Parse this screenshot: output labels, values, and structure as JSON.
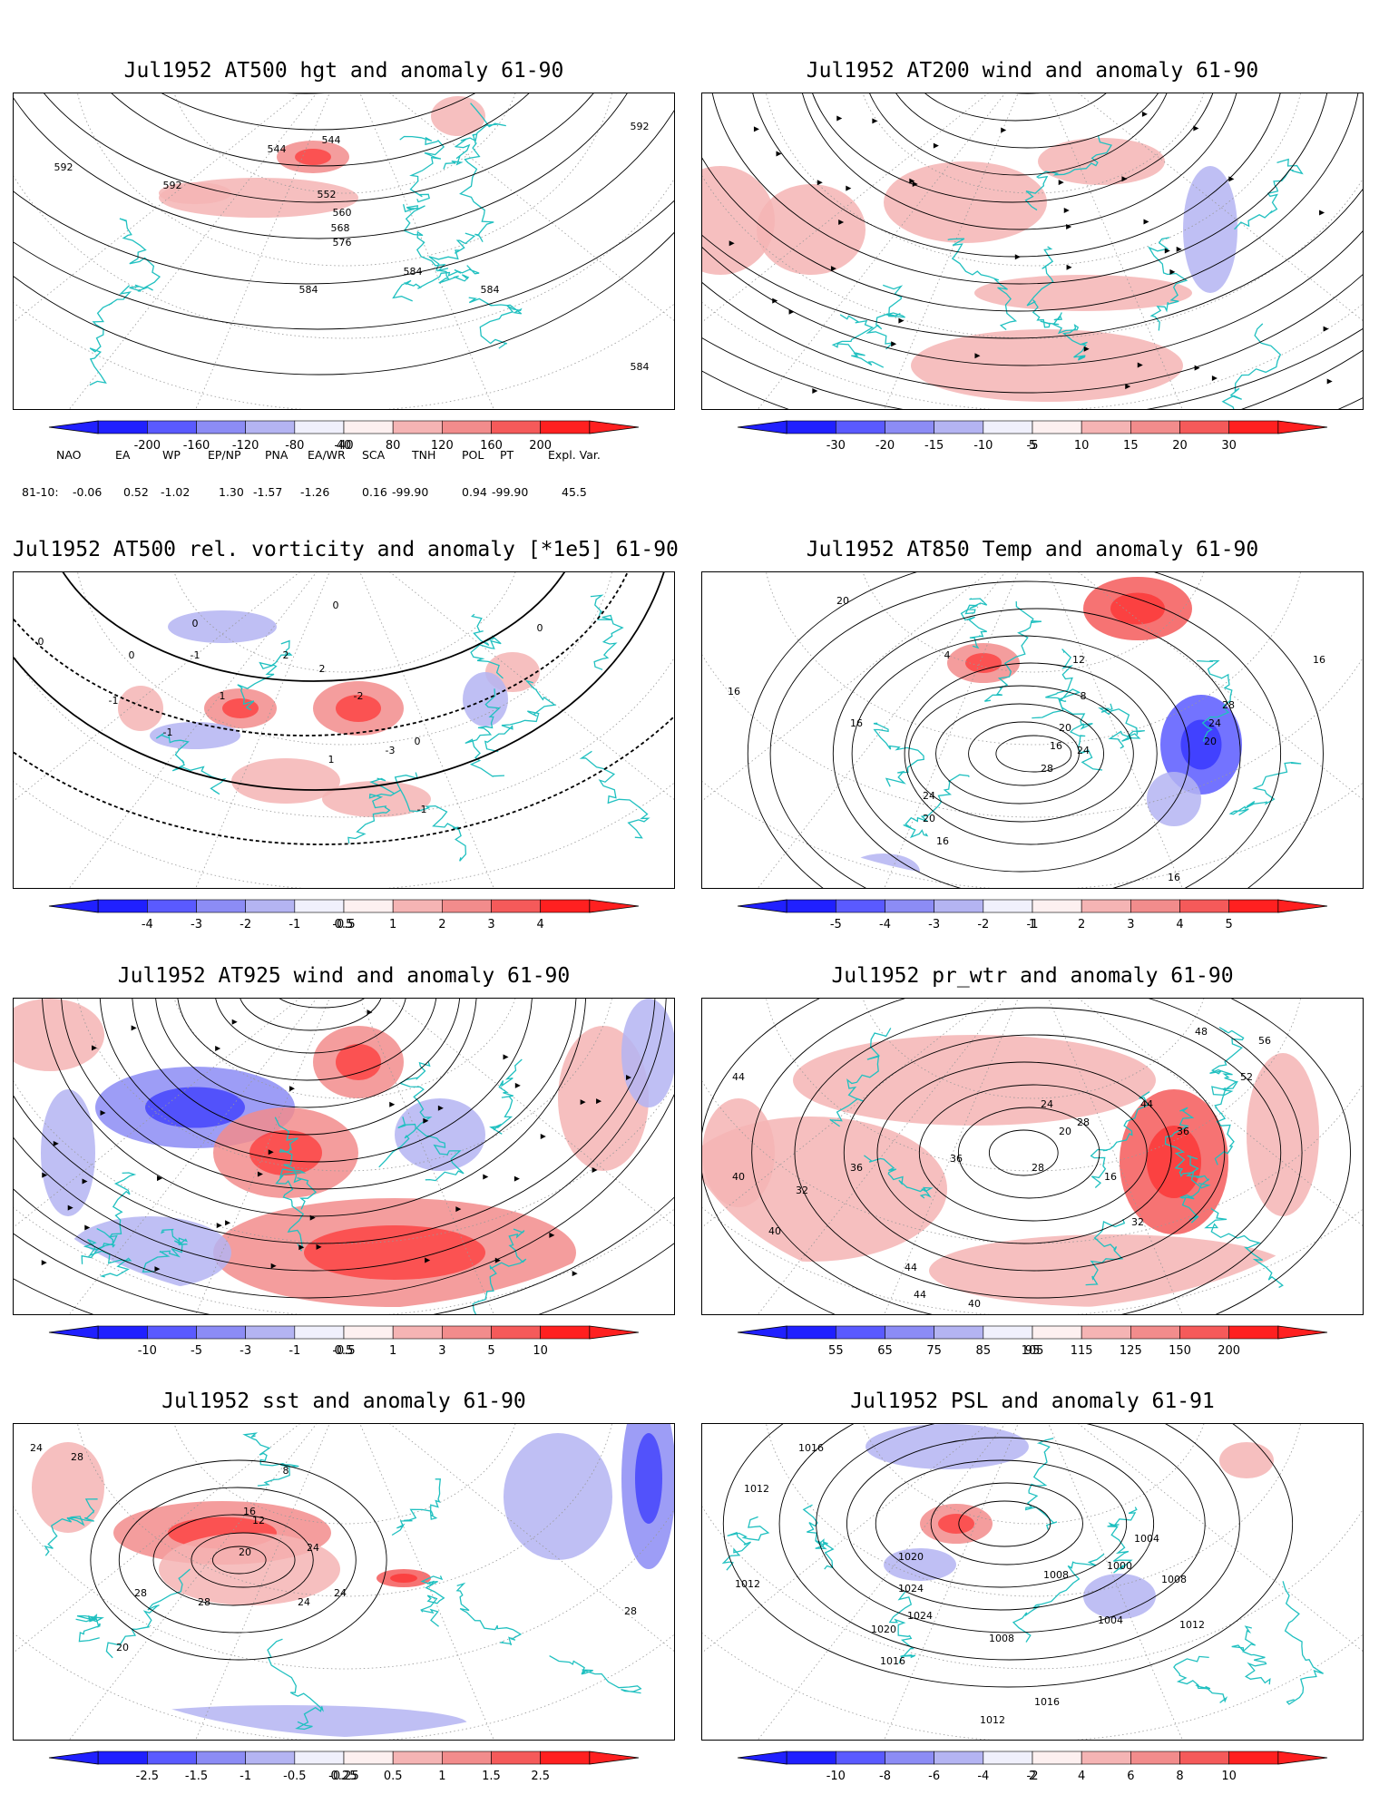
{
  "panels": [
    {
      "title": "Jul1952 AT500 hgt and anomaly 61-90",
      "colorbar": {
        "labels": [
          "-200",
          "-160",
          "-120",
          "-80",
          "-40",
          "40",
          "80",
          "120",
          "160",
          "200"
        ]
      },
      "contour_labels": [
        "544",
        "544",
        "552",
        "560",
        "568",
        "576",
        "584",
        "584",
        "584",
        "584",
        "592",
        "592",
        "592"
      ]
    },
    {
      "title": "Jul1952 AT200 wind and anomaly 61-90",
      "colorbar": {
        "labels": [
          "-30",
          "-20",
          "-15",
          "-10",
          "-5",
          "5",
          "10",
          "15",
          "20",
          "30"
        ]
      },
      "contour_labels": []
    },
    {
      "title": "Jul1952 AT500 rel. vorticity and anomaly [*1e5] 61-90",
      "colorbar": {
        "labels": [
          "-4",
          "-3",
          "-2",
          "-1",
          "-0.5",
          "0.5",
          "1",
          "2",
          "3",
          "4"
        ]
      },
      "contour_labels": [
        "0",
        "0",
        "0",
        "0",
        "0",
        "0",
        "-1",
        "-1",
        "-1",
        "-1",
        "1",
        "1",
        "2",
        "2",
        "-2",
        "-3"
      ]
    },
    {
      "title": "Jul1952 AT850 Temp and anomaly 61-90",
      "colorbar": {
        "labels": [
          "-5",
          "-4",
          "-3",
          "-2",
          "-1",
          "1",
          "2",
          "3",
          "4",
          "5"
        ]
      },
      "contour_labels": [
        "20",
        "16",
        "16",
        "16",
        "12",
        "8",
        "20",
        "24",
        "28",
        "28",
        "24",
        "20",
        "24",
        "20",
        "16",
        "16",
        "16",
        "4"
      ]
    },
    {
      "title": "Jul1952 AT925 wind and anomaly 61-90",
      "colorbar": {
        "labels": [
          "-10",
          "-5",
          "-3",
          "-1",
          "-0.5",
          "0.5",
          "1",
          "3",
          "5",
          "10"
        ]
      },
      "contour_labels": []
    },
    {
      "title": "Jul1952 pr_wtr and anomaly 61-90",
      "colorbar": {
        "labels": [
          "55",
          "65",
          "75",
          "85",
          "95",
          "105",
          "115",
          "125",
          "150",
          "200"
        ]
      },
      "contour_labels": [
        "44",
        "40",
        "36",
        "32",
        "36",
        "28",
        "24",
        "20",
        "16",
        "44",
        "48",
        "56",
        "52",
        "40",
        "44",
        "28",
        "32",
        "40",
        "44",
        "36"
      ]
    },
    {
      "title": "Jul1952 sst and anomaly 61-90",
      "colorbar": {
        "labels": [
          "-2.5",
          "-1.5",
          "-1",
          "-0.5",
          "-0.25",
          "0.25",
          "0.5",
          "1",
          "1.5",
          "2.5"
        ]
      },
      "contour_labels": [
        "24",
        "28",
        "28",
        "16",
        "20",
        "12",
        "8",
        "24",
        "24",
        "24",
        "28",
        "20",
        "28"
      ]
    },
    {
      "title": "Jul1952 PSL and anomaly 61-91",
      "colorbar": {
        "labels": [
          "-10",
          "-8",
          "-6",
          "-4",
          "-2",
          "2",
          "4",
          "6",
          "8",
          "10"
        ]
      },
      "contour_labels": [
        "1012",
        "1012",
        "1016",
        "1020",
        "1024",
        "1024",
        "1020",
        "1016",
        "1008",
        "1012",
        "1008",
        "1004",
        "1000",
        "1004",
        "1008",
        "1012",
        "1016"
      ]
    }
  ],
  "teleconnections": {
    "headers": [
      "NAO",
      "EA",
      "WP",
      "EP/NP",
      "PNA",
      "EA/WR",
      "SCA",
      "TNH",
      "POL",
      "PT",
      "Expl. Var."
    ],
    "row_label": "81-10:",
    "values": [
      "-0.06",
      "0.52",
      "-1.02",
      "1.30",
      "-1.57",
      "-1.26",
      "0.16",
      "-99.90",
      "0.94",
      "-99.90",
      "45.5"
    ]
  },
  "colors": {
    "coast": "#20c0c0",
    "blue_scale": [
      "#2020ff",
      "#5a5aff",
      "#8c8cf5",
      "#b4b4f2",
      "#dcdcf8"
    ],
    "red_scale": [
      "#fadcdc",
      "#f5b4b4",
      "#f28c8c",
      "#f55a5a",
      "#ff2020"
    ]
  }
}
